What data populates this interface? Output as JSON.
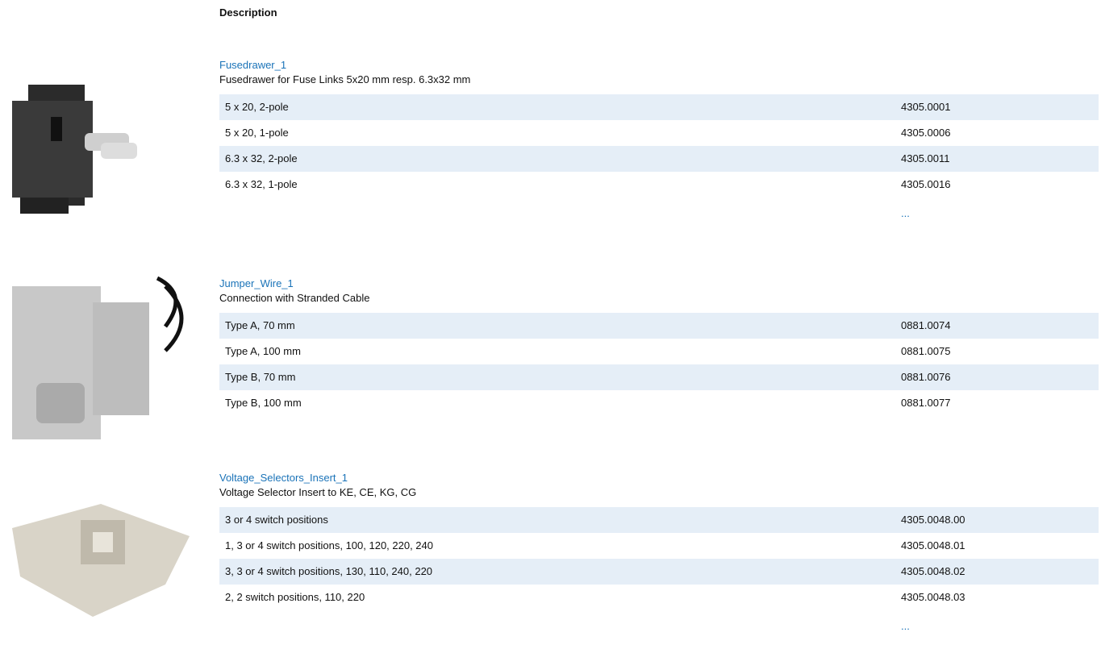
{
  "header": {
    "title": "Description"
  },
  "products": [
    {
      "title": "Fusedrawer_1",
      "description": "Fusedrawer for Fuse Links 5x20 mm resp. 6.3x32 mm",
      "rows": [
        [
          "5 x 20, 2-pole",
          "4305.0001"
        ],
        [
          "5 x 20, 1-pole",
          "4305.0006"
        ],
        [
          "6.3 x 32, 2-pole",
          "4305.0011"
        ],
        [
          "6.3 x 32, 1-pole",
          "4305.0016"
        ]
      ],
      "more": "..."
    },
    {
      "title": "Jumper_Wire_1",
      "description": "Connection with Stranded Cable",
      "rows": [
        [
          "Type A, 70 mm",
          "0881.0074"
        ],
        [
          "Type A, 100 mm",
          "0881.0075"
        ],
        [
          "Type B, 70 mm",
          "0881.0076"
        ],
        [
          "Type B, 100 mm",
          "0881.0077"
        ]
      ]
    },
    {
      "title": "Voltage_Selectors_Insert_1",
      "description": "Voltage Selector Insert to KE, CE, KG, CG",
      "rows": [
        [
          "3 or 4 switch positions",
          "4305.0048.00"
        ],
        [
          "1, 3 or 4 switch positions, 100, 120, 220, 240",
          "4305.0048.01"
        ],
        [
          "3, 3 or 4 switch positions, 130, 110, 240, 220",
          "4305.0048.02"
        ],
        [
          "2, 2 switch positions, 110, 220",
          "4305.0048.03"
        ]
      ],
      "more": "..."
    }
  ]
}
